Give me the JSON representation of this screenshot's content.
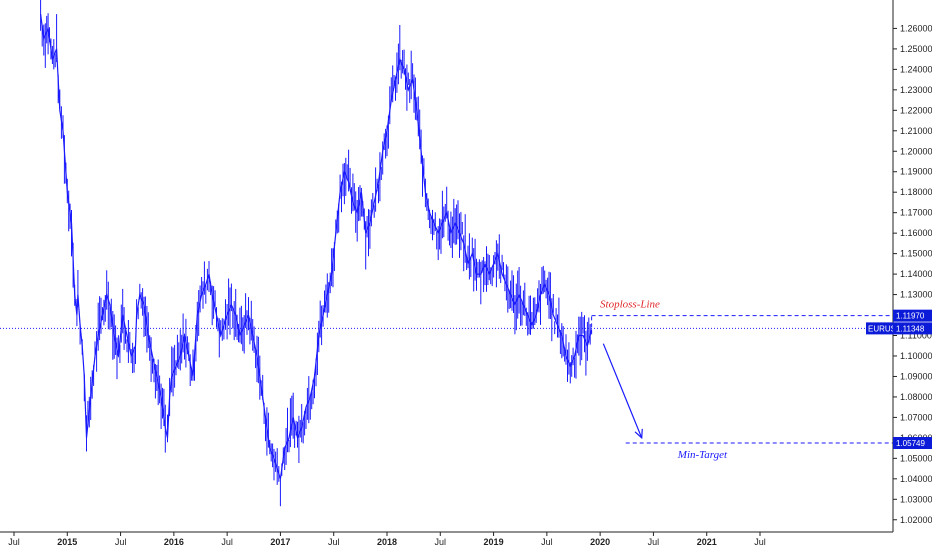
{
  "chart_data": {
    "type": "line",
    "symbol": "EURUSD",
    "current_price": 1.11348,
    "current_price_label": "1.11348",
    "colors": {
      "series": "#1a1aff",
      "axis": "#222222",
      "badge": "#0b1bd8",
      "dashed": "#1a1aff",
      "stoploss_text": "#e0262a",
      "target_text": "#1a1aff"
    },
    "ylim": [
      1.015,
      1.269
    ],
    "xlim": [
      2014.45,
      2021.95
    ],
    "y_ticks": [
      "1.02000",
      "1.03000",
      "1.04000",
      "1.05000",
      "1.06000",
      "1.07000",
      "1.08000",
      "1.09000",
      "1.10000",
      "1.11000",
      "1.12000",
      "1.13000",
      "1.14000",
      "1.15000",
      "1.16000",
      "1.17000",
      "1.18000",
      "1.19000",
      "1.20000",
      "1.21000",
      "1.22000",
      "1.23000",
      "1.24000",
      "1.25000",
      "1.26000"
    ],
    "x_ticks": [
      {
        "label": "Jul",
        "x": 2014.5,
        "year": false
      },
      {
        "label": "2015",
        "x": 2015.0,
        "year": true
      },
      {
        "label": "Jul",
        "x": 2015.5,
        "year": false
      },
      {
        "label": "2016",
        "x": 2016.0,
        "year": true
      },
      {
        "label": "Jul",
        "x": 2016.5,
        "year": false
      },
      {
        "label": "2017",
        "x": 2017.0,
        "year": true
      },
      {
        "label": "Jul",
        "x": 2017.5,
        "year": false
      },
      {
        "label": "2018",
        "x": 2018.0,
        "year": true
      },
      {
        "label": "Jul",
        "x": 2018.5,
        "year": false
      },
      {
        "label": "2019",
        "x": 2019.0,
        "year": true
      },
      {
        "label": "Jul",
        "x": 2019.5,
        "year": false
      },
      {
        "label": "2020",
        "x": 2020.0,
        "year": true
      },
      {
        "label": "Jul",
        "x": 2020.5,
        "year": false
      },
      {
        "label": "2021",
        "x": 2021.0,
        "year": true
      },
      {
        "label": "Jul",
        "x": 2021.5,
        "year": false
      }
    ],
    "series": [
      {
        "x": [
          2014.75,
          2014.78,
          2014.82,
          2014.86,
          2014.9,
          2014.93,
          2014.96,
          2015.0,
          2015.04,
          2015.07,
          2015.09,
          2015.1,
          2015.12,
          2015.14,
          2015.16,
          2015.18,
          2015.22,
          2015.26,
          2015.29,
          2015.33,
          2015.37,
          2015.4,
          2015.44,
          2015.48,
          2015.52,
          2015.56,
          2015.6,
          2015.64,
          2015.65,
          2015.68,
          2015.72,
          2015.76,
          2015.8,
          2015.84,
          2015.88,
          2015.92,
          2015.94,
          2015.96,
          2015.98,
          2016.02,
          2016.06,
          2016.1,
          2016.14,
          2016.18,
          2016.22,
          2016.26,
          2016.3,
          2016.33,
          2016.36,
          2016.4,
          2016.44,
          2016.47,
          2016.5,
          2016.54,
          2016.58,
          2016.62,
          2016.66,
          2016.7,
          2016.74,
          2016.78,
          2016.82,
          2016.86,
          2016.9,
          2016.94,
          2016.97,
          2017.0,
          2017.04,
          2017.08,
          2017.12,
          2017.16,
          2017.2,
          2017.24,
          2017.28,
          2017.32,
          2017.36,
          2017.4,
          2017.44,
          2017.48,
          2017.52,
          2017.56,
          2017.6,
          2017.64,
          2017.68,
          2017.72,
          2017.76,
          2017.8,
          2017.84,
          2017.88,
          2017.92,
          2017.96,
          2018.0,
          2018.04,
          2018.08,
          2018.12,
          2018.16,
          2018.2,
          2018.24,
          2018.28,
          2018.32,
          2018.36,
          2018.4,
          2018.44,
          2018.48,
          2018.52,
          2018.56,
          2018.6,
          2018.64,
          2018.68,
          2018.72,
          2018.76,
          2018.8,
          2018.84,
          2018.88,
          2018.92,
          2018.96,
          2019.0,
          2019.04,
          2019.08,
          2019.12,
          2019.16,
          2019.2,
          2019.24,
          2019.28,
          2019.32,
          2019.36,
          2019.4,
          2019.44,
          2019.48,
          2019.52,
          2019.56,
          2019.6,
          2019.64,
          2019.68,
          2019.72,
          2019.76,
          2019.8,
          2019.84,
          2019.88,
          2019.92
        ],
        "y": [
          1.267,
          1.255,
          1.26,
          1.245,
          1.25,
          1.22,
          1.21,
          1.18,
          1.165,
          1.13,
          1.12,
          1.13,
          1.115,
          1.105,
          1.09,
          1.06,
          1.08,
          1.1,
          1.11,
          1.12,
          1.13,
          1.125,
          1.11,
          1.1,
          1.12,
          1.11,
          1.1,
          1.105,
          1.12,
          1.13,
          1.125,
          1.11,
          1.1,
          1.09,
          1.08,
          1.065,
          1.06,
          1.08,
          1.09,
          1.095,
          1.1,
          1.11,
          1.1,
          1.09,
          1.12,
          1.13,
          1.135,
          1.14,
          1.13,
          1.12,
          1.11,
          1.115,
          1.12,
          1.125,
          1.12,
          1.11,
          1.115,
          1.12,
          1.11,
          1.1,
          1.085,
          1.07,
          1.055,
          1.05,
          1.045,
          1.04,
          1.055,
          1.06,
          1.07,
          1.06,
          1.065,
          1.075,
          1.08,
          1.09,
          1.11,
          1.12,
          1.13,
          1.14,
          1.16,
          1.18,
          1.19,
          1.185,
          1.175,
          1.17,
          1.18,
          1.16,
          1.165,
          1.175,
          1.185,
          1.2,
          1.21,
          1.225,
          1.235,
          1.245,
          1.24,
          1.23,
          1.235,
          1.22,
          1.2,
          1.18,
          1.17,
          1.165,
          1.16,
          1.165,
          1.17,
          1.16,
          1.165,
          1.16,
          1.155,
          1.145,
          1.15,
          1.14,
          1.14,
          1.145,
          1.14,
          1.145,
          1.15,
          1.14,
          1.135,
          1.13,
          1.125,
          1.13,
          1.125,
          1.12,
          1.115,
          1.12,
          1.13,
          1.135,
          1.13,
          1.12,
          1.115,
          1.11,
          1.1,
          1.095,
          1.1,
          1.11,
          1.11,
          1.105,
          1.113
        ]
      }
    ],
    "annotations": {
      "stoploss": {
        "label": "Stoploss-Line",
        "value": 1.1197,
        "value_label": "1.11970",
        "x_start": 2019.92
      },
      "target": {
        "label": "Min-Target",
        "value": 1.05749,
        "value_label": "1.05749",
        "x_start": 2020.24
      },
      "arrow": {
        "x_from": 2020.03,
        "y_from": 1.106,
        "x_to": 2020.39,
        "y_to": 1.06
      }
    }
  }
}
